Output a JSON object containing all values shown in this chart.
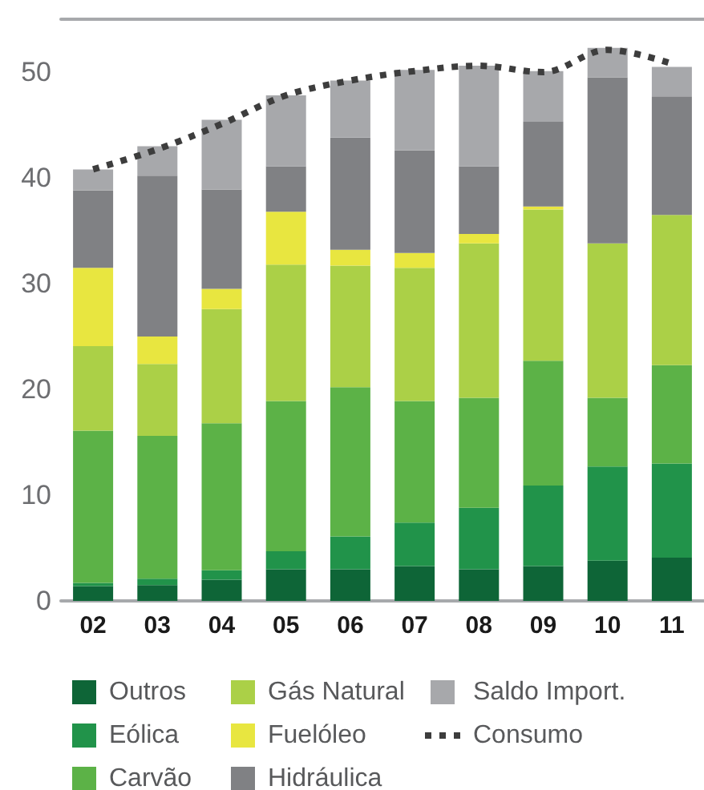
{
  "chart_data": {
    "type": "bar",
    "stacked": true,
    "categories": [
      "02",
      "03",
      "04",
      "05",
      "06",
      "07",
      "08",
      "09",
      "10",
      "11"
    ],
    "ylim": [
      0,
      55
    ],
    "yticks": [
      0,
      10,
      20,
      30,
      40,
      50
    ],
    "grid": false,
    "legend": "bottom",
    "marker": "none",
    "line_style": "dotted",
    "series": [
      {
        "name": "Outros",
        "color": "#0e6537",
        "values": [
          1.4,
          1.5,
          2.0,
          3.0,
          3.0,
          3.3,
          3.0,
          3.3,
          3.8,
          4.1
        ]
      },
      {
        "name": "Eólica",
        "color": "#21934a",
        "values": [
          0.3,
          0.6,
          0.9,
          1.7,
          3.1,
          4.1,
          5.8,
          7.6,
          8.9,
          8.9
        ]
      },
      {
        "name": "Carvão",
        "color": "#5cb247",
        "values": [
          14.4,
          13.5,
          13.9,
          14.2,
          14.1,
          11.5,
          10.4,
          11.8,
          6.5,
          9.3
        ]
      },
      {
        "name": "Gás Natural",
        "color": "#abd047",
        "values": [
          8.0,
          6.8,
          10.8,
          12.9,
          11.5,
          12.6,
          14.6,
          14.3,
          14.6,
          14.2
        ]
      },
      {
        "name": "Fuelóleo",
        "color": "#e8e640",
        "values": [
          7.4,
          2.6,
          1.9,
          5.0,
          1.5,
          1.4,
          0.9,
          0.3,
          null,
          null
        ]
      },
      {
        "name": "Hidráulica",
        "color": "#808184",
        "values": [
          7.3,
          15.2,
          9.4,
          4.3,
          10.6,
          9.7,
          6.4,
          8.0,
          15.7,
          11.2
        ]
      },
      {
        "name": "Saldo Import.",
        "color": "#a7a8ab",
        "values": [
          2.0,
          2.8,
          6.6,
          6.7,
          5.4,
          7.6,
          9.5,
          4.8,
          2.8,
          2.8
        ]
      },
      {
        "name": "Consumo",
        "type": "line",
        "color": "#3d3d3d",
        "values": [
          40.8,
          42.7,
          45.1,
          47.8,
          49.2,
          50.1,
          50.6,
          50.0,
          52.1,
          50.8
        ]
      }
    ]
  }
}
